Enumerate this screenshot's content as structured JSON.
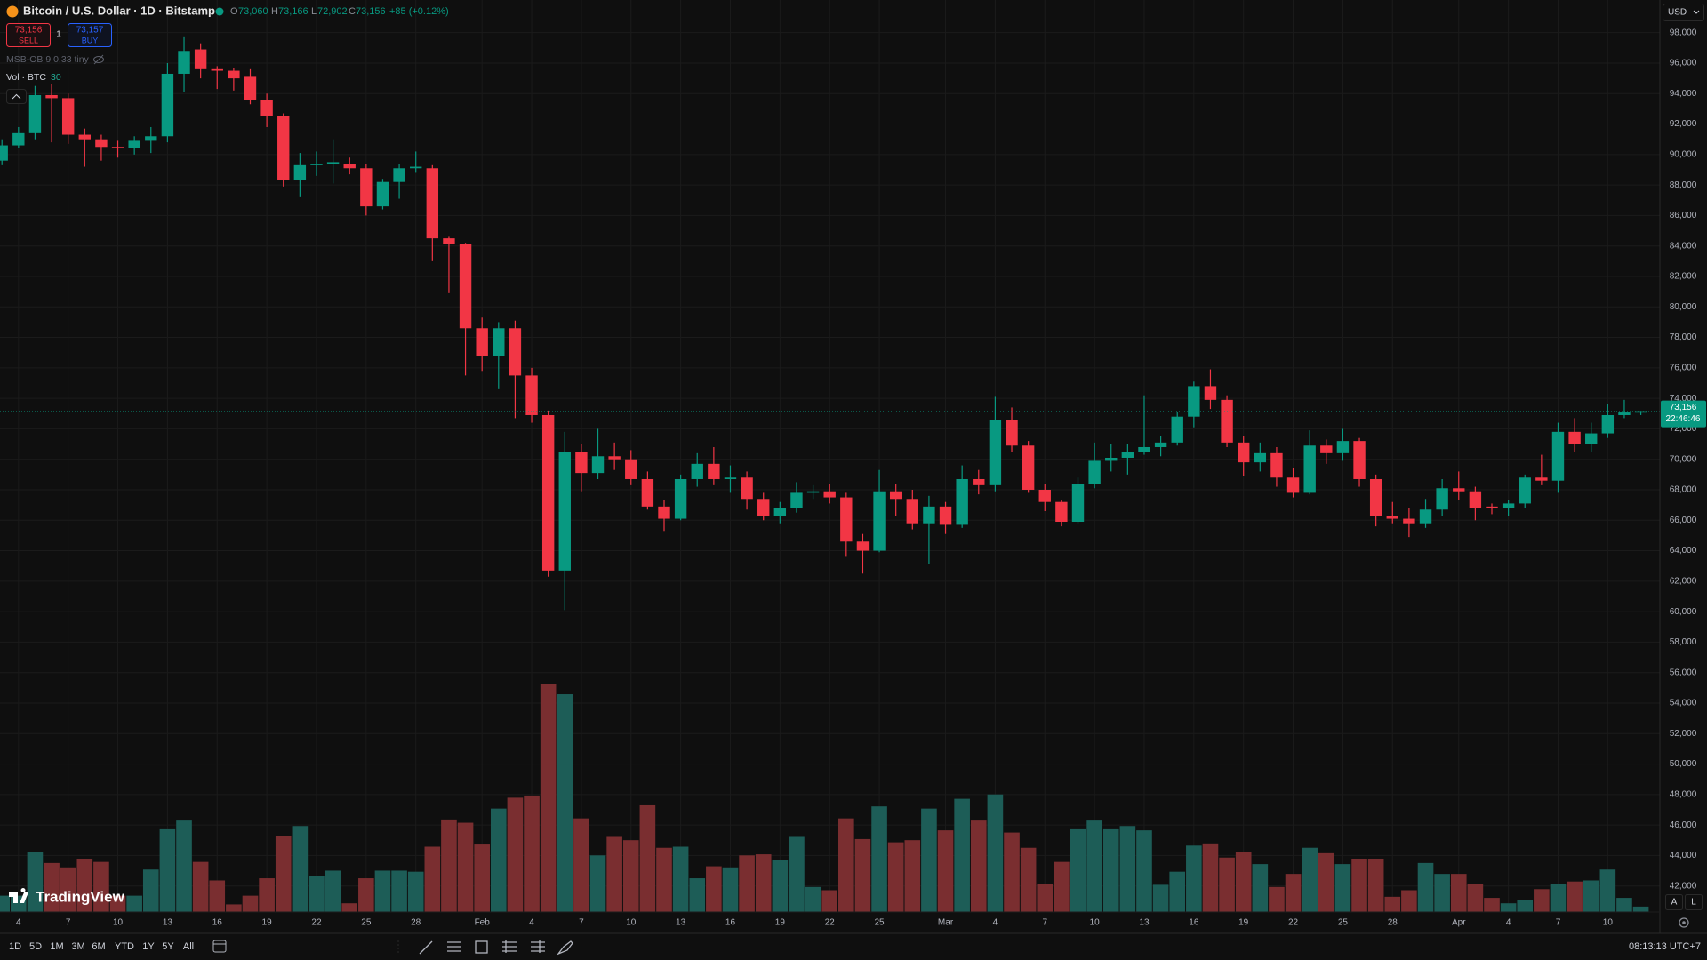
{
  "header": {
    "symbol": "Bitcoin / U.S. Dollar · 1D · Bitstamp",
    "ohlc": [
      {
        "label": "O",
        "value": "73,060"
      },
      {
        "label": "H",
        "value": "73,166"
      },
      {
        "label": "L",
        "value": "72,902"
      },
      {
        "label": "C",
        "value": "73,156"
      }
    ],
    "change": "+85 (+0.12%)"
  },
  "trade": {
    "sell_price": "73,156",
    "sell": "SELL",
    "spread": "1",
    "buy_price": "73,157",
    "buy": "BUY"
  },
  "indicators": [
    {
      "name": "MSB-OB 9 0.33 tiny"
    },
    {
      "name": "Vol · BTC",
      "value": "30"
    }
  ],
  "currency": "USD",
  "watermark": "TradingView",
  "scale_buttons": [
    "A",
    "L"
  ],
  "toolbar": {
    "ranges": [
      "1D",
      "5D",
      "1M",
      "3M",
      "6M",
      "YTD",
      "1Y",
      "5Y",
      "All"
    ],
    "time": "08:13:13 UTC+7"
  },
  "chart_data": {
    "type": "candlestick",
    "categories": [
      null,
      "4",
      null,
      null,
      "7",
      null,
      null,
      "10",
      null,
      null,
      "13",
      null,
      null,
      "16",
      null,
      null,
      "19",
      null,
      null,
      "22",
      null,
      null,
      "25",
      null,
      null,
      "28",
      null,
      null,
      null,
      "Feb",
      null,
      null,
      "4",
      null,
      null,
      "7",
      null,
      null,
      "10",
      null,
      null,
      "13",
      null,
      null,
      "16",
      null,
      null,
      "19",
      null,
      null,
      "22",
      null,
      null,
      "25",
      null,
      null,
      null,
      "Mar",
      null,
      null,
      "4",
      null,
      null,
      "7",
      null,
      null,
      "10",
      null,
      null,
      "13",
      null,
      null,
      "16",
      null,
      null,
      "19",
      null,
      null,
      "22",
      null,
      null,
      "25",
      null,
      null,
      "28",
      null,
      null,
      null,
      "Apr",
      null,
      null,
      "4",
      null,
      null,
      "7",
      null,
      null,
      "10",
      null,
      null
    ],
    "open": [
      89600,
      90600,
      91400,
      93900,
      93700,
      91300,
      91000,
      90500,
      90400,
      90900,
      91200,
      95300,
      96900,
      95600,
      95500,
      95100,
      93600,
      92500,
      88300,
      89300,
      89400,
      89400,
      89100,
      86600,
      88200,
      89100,
      89100,
      84500,
      84100,
      78600,
      76800,
      78600,
      75500,
      72900,
      62700,
      70500,
      69100,
      70200,
      70000,
      68700,
      66900,
      66100,
      68700,
      69700,
      68700,
      68800,
      67400,
      66300,
      66800,
      67800,
      67900,
      67500,
      64600,
      64000,
      67900,
      67400,
      65800,
      66900,
      65700,
      68700,
      68300,
      72600,
      70900,
      68000,
      67200,
      65900,
      68400,
      69900,
      70100,
      70500,
      70800,
      71100,
      72800,
      74800,
      73900,
      71100,
      69800,
      70400,
      68800,
      67800,
      70900,
      70400,
      71200,
      68700,
      66300,
      66100,
      65800,
      66700,
      68100,
      67900,
      66900,
      66800,
      67100,
      68800,
      68600,
      71800,
      71000,
      71700,
      72900,
      73060
    ],
    "high": [
      91000,
      91800,
      94500,
      94600,
      94000,
      91700,
      91300,
      90900,
      91200,
      91800,
      96000,
      97700,
      97300,
      95800,
      95700,
      95600,
      94000,
      92700,
      90100,
      90200,
      91000,
      89800,
      89400,
      88400,
      89400,
      90200,
      89300,
      84600,
      84200,
      79300,
      79000,
      79100,
      76000,
      73200,
      71800,
      71000,
      72000,
      71100,
      70600,
      69200,
      67300,
      69000,
      70400,
      70800,
      69600,
      69200,
      67800,
      67200,
      68500,
      68300,
      68400,
      67800,
      65100,
      69300,
      68400,
      68000,
      67600,
      67200,
      69600,
      69300,
      74100,
      73400,
      71200,
      68400,
      67300,
      68800,
      71100,
      71000,
      71000,
      74200,
      71500,
      73100,
      75100,
      75900,
      74200,
      71500,
      71100,
      70800,
      69400,
      71900,
      71300,
      72000,
      71400,
      69000,
      67200,
      66800,
      67400,
      68700,
      69200,
      68200,
      67100,
      67300,
      69000,
      70300,
      72400,
      72700,
      72400,
      73600,
      73900,
      73166
    ],
    "low": [
      89300,
      90400,
      91000,
      90800,
      90700,
      89200,
      89600,
      89800,
      90000,
      90100,
      90800,
      94100,
      95000,
      94300,
      94200,
      93300,
      91800,
      87900,
      87200,
      88600,
      88100,
      88700,
      86000,
      86400,
      87100,
      88800,
      83000,
      80900,
      75500,
      75800,
      74600,
      72700,
      72400,
      62300,
      60100,
      67900,
      68700,
      69300,
      68300,
      66700,
      65300,
      66000,
      68200,
      68300,
      67800,
      66700,
      66000,
      65800,
      66500,
      67400,
      67100,
      63600,
      62500,
      63900,
      66300,
      65400,
      63100,
      65100,
      65500,
      67700,
      67900,
      70500,
      67800,
      66600,
      65600,
      65800,
      68100,
      69200,
      69000,
      70300,
      70200,
      70900,
      72100,
      73300,
      70800,
      68900,
      69200,
      68200,
      67500,
      67700,
      69700,
      69900,
      68200,
      65600,
      65800,
      64900,
      65500,
      66300,
      67300,
      66000,
      66400,
      66300,
      66800,
      68300,
      67800,
      70500,
      70500,
      71400,
      72700,
      72902
    ],
    "close": [
      90600,
      91400,
      93900,
      93700,
      91300,
      91000,
      90500,
      90400,
      90900,
      91200,
      95300,
      96800,
      95600,
      95500,
      95000,
      93600,
      92500,
      88300,
      89300,
      89400,
      89500,
      89100,
      86600,
      88200,
      89100,
      89200,
      84500,
      84100,
      78600,
      76800,
      78600,
      75500,
      72900,
      62700,
      70500,
      69100,
      70200,
      70000,
      68700,
      66900,
      66100,
      68700,
      69700,
      68700,
      68800,
      67400,
      66300,
      66800,
      67800,
      67900,
      67500,
      64600,
      64000,
      67900,
      67400,
      65800,
      66900,
      65700,
      68700,
      68300,
      72600,
      70900,
      68000,
      67200,
      65900,
      68400,
      69900,
      70100,
      70500,
      70800,
      71100,
      72800,
      74800,
      73900,
      71100,
      69800,
      70400,
      68800,
      67800,
      70900,
      70400,
      71200,
      68700,
      66300,
      66100,
      65800,
      66700,
      68100,
      67900,
      66800,
      66800,
      67100,
      68800,
      68600,
      71800,
      71000,
      71700,
      72900,
      73071,
      73156
    ],
    "volume": [
      1500,
      1500,
      5500,
      4500,
      4100,
      4900,
      4600,
      1500,
      1500,
      3900,
      7600,
      8400,
      4600,
      2900,
      700,
      1500,
      3100,
      7000,
      7900,
      3300,
      3800,
      800,
      3100,
      3800,
      3800,
      3700,
      6000,
      8500,
      8200,
      6200,
      9500,
      10500,
      10700,
      20900,
      20000,
      8600,
      5200,
      6900,
      6600,
      9800,
      5900,
      6000,
      3100,
      4200,
      4100,
      5200,
      5300,
      4800,
      6900,
      2300,
      2000,
      8600,
      6700,
      9700,
      6400,
      6600,
      9500,
      7500,
      10400,
      8400,
      10800,
      7300,
      5900,
      2600,
      4600,
      7600,
      8400,
      7600,
      7900,
      7500,
      2500,
      3700,
      6100,
      6300,
      5000,
      5500,
      4400,
      2300,
      3500,
      5900,
      5400,
      4400,
      4900,
      4900,
      1400,
      2000,
      4500,
      3500,
      3500,
      2600,
      1300,
      800,
      1100,
      2100,
      2600,
      2800,
      2900,
      3900,
      1300,
      500
    ],
    "up_color": "#089981",
    "down_color": "#f23645",
    "volume_up_color": "#1d5d57",
    "volume_down_color": "#7a2e30",
    "ylim": [
      40000,
      100000
    ],
    "yticks": [
      {
        "value": 42000,
        "label": "42,000"
      },
      {
        "value": 44000,
        "label": "44,000"
      },
      {
        "value": 46000,
        "label": "46,000"
      },
      {
        "value": 48000,
        "label": "48,000"
      },
      {
        "value": 50000,
        "label": "50,000"
      },
      {
        "value": 52000,
        "label": "52,000"
      },
      {
        "value": 54000,
        "label": "54,000"
      },
      {
        "value": 56000,
        "label": "56,000"
      },
      {
        "value": 58000,
        "label": "58,000"
      },
      {
        "value": 60000,
        "label": "60,000"
      },
      {
        "value": 62000,
        "label": "62,000"
      },
      {
        "value": 64000,
        "label": "64,000"
      },
      {
        "value": 66000,
        "label": "66,000"
      },
      {
        "value": 68000,
        "label": "68,000"
      },
      {
        "value": 70000,
        "label": "70,000"
      },
      {
        "value": 72000,
        "label": "72,000"
      },
      {
        "value": 74000,
        "label": "74,000"
      },
      {
        "value": 76000,
        "label": "76,000"
      },
      {
        "value": 78000,
        "label": "78,000"
      },
      {
        "value": 80000,
        "label": "80,000"
      },
      {
        "value": 82000,
        "label": "82,000"
      },
      {
        "value": 84000,
        "label": "84,000"
      },
      {
        "value": 86000,
        "label": "86,000"
      },
      {
        "value": 88000,
        "label": "88,000"
      },
      {
        "value": 90000,
        "label": "90,000"
      },
      {
        "value": 92000,
        "label": "92,000"
      },
      {
        "value": 94000,
        "label": "94,000"
      },
      {
        "value": 96000,
        "label": "96,000"
      },
      {
        "value": 98000,
        "label": "98,000"
      }
    ],
    "grid": true,
    "last_price_label": "73,156",
    "countdown": "22:46:46"
  }
}
